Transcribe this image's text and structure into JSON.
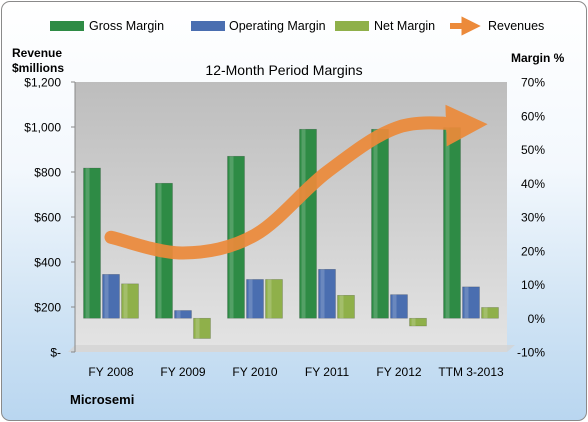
{
  "chart_data": {
    "type": "bar",
    "title": "12-Month Period Margins",
    "company": "Microsemi",
    "left_axis": {
      "label_line1": "Revenue",
      "label_line2": "$millions",
      "range": [
        0,
        1200
      ],
      "ticks": [
        0,
        200,
        400,
        600,
        800,
        1000,
        1200
      ],
      "tick_labels": [
        "$-",
        "$200",
        "$400",
        "$600",
        "$800",
        "$1,000",
        "$1,200"
      ]
    },
    "right_axis": {
      "label": "Margin %",
      "range": [
        -10,
        70
      ],
      "ticks": [
        -10,
        0,
        10,
        20,
        30,
        40,
        50,
        60,
        70
      ],
      "tick_labels": [
        "-10%",
        "0%",
        "10%",
        "20%",
        "30%",
        "40%",
        "50%",
        "60%",
        "70%"
      ]
    },
    "categories": [
      "FY 2008",
      "FY 2009",
      "FY 2010",
      "FY 2011",
      "FY 2012",
      "TTM 3-2013"
    ],
    "series": [
      {
        "name": "Gross Margin",
        "axis": "right",
        "kind": "bar",
        "color": "#2e8b45",
        "values": [
          44.5,
          40,
          48,
          56,
          56,
          56.5
        ]
      },
      {
        "name": "Operating Margin",
        "axis": "right",
        "kind": "bar",
        "color": "#4a6eb0",
        "values": [
          13,
          2.3,
          11.5,
          14.5,
          7,
          9.3
        ]
      },
      {
        "name": "Net Margin",
        "axis": "right",
        "kind": "bar",
        "color": "#8fb04a",
        "values": [
          10.2,
          -6,
          11.5,
          6.8,
          -2.3,
          3.2
        ]
      },
      {
        "name": "Revenues",
        "axis": "left",
        "kind": "line",
        "color": "#ec8a3a",
        "values": [
          510,
          440,
          520,
          800,
          1000,
          1010
        ]
      }
    ],
    "grid": false,
    "legend": "top"
  }
}
